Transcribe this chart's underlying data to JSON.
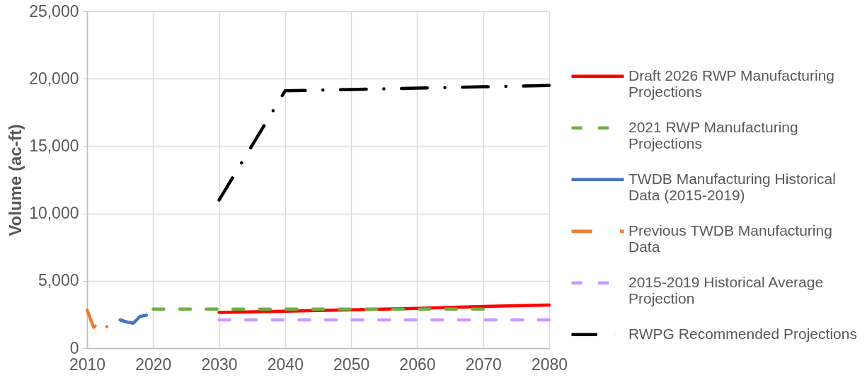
{
  "chart_data": {
    "type": "line",
    "ylabel": "Volume (ac-ft)",
    "xlim": [
      2010,
      2080
    ],
    "xticks": [
      2010,
      2020,
      2030,
      2040,
      2050,
      2060,
      2070,
      2080
    ],
    "ylim": [
      0,
      25000
    ],
    "yticks": [
      0,
      {
        "value": 5000,
        "label": "5,000"
      },
      {
        "value": 10000,
        "label": "10,000"
      },
      {
        "value": 15000,
        "label": "15,000"
      },
      {
        "value": 20000,
        "label": "20,000"
      },
      {
        "value": 25000,
        "label": "25,000"
      }
    ],
    "grid": true,
    "legend": "right",
    "series": [
      {
        "name": "Draft 2026 RWP Manufacturing Projections",
        "color": "#ff0000",
        "line_style": "solid",
        "x": [
          2030,
          2040,
          2050,
          2060,
          2070,
          2080
        ],
        "values": [
          2650,
          2750,
          2850,
          2950,
          3100,
          3200
        ]
      },
      {
        "name": "2021 RWP Manufacturing Projections",
        "color": "#70ad47",
        "line_style": "dashed",
        "x": [
          2020,
          2030,
          2040,
          2050,
          2060,
          2070
        ],
        "values": [
          2900,
          2900,
          2900,
          2900,
          2900,
          2900
        ]
      },
      {
        "name": "TWDB Manufacturing Historical Data (2015-2019)",
        "color": "#4472c4",
        "line_style": "solid",
        "x": [
          2015,
          2016,
          2017,
          2018,
          2019
        ],
        "values": [
          2100,
          1950,
          1850,
          2350,
          2450
        ]
      },
      {
        "name": "Previous TWDB Manufacturing Data",
        "color": "#ed7d31",
        "line_style": "dashdot",
        "x": [
          2010,
          2011,
          2012,
          2013
        ],
        "values": [
          2850,
          1550,
          1900,
          1600
        ]
      },
      {
        "name": "2015-2019 Historical Average Projection",
        "color": "#cc99ff",
        "line_style": "dashed",
        "x": [
          2030,
          2040,
          2050,
          2060,
          2070,
          2080
        ],
        "values": [
          2100,
          2100,
          2100,
          2100,
          2100,
          2100
        ]
      },
      {
        "name": "RWPG Recommended Projections",
        "color": "#000000",
        "line_style": "dashdot",
        "x": [
          2030,
          2040,
          2050,
          2060,
          2070,
          2080
        ],
        "values": [
          11000,
          19100,
          19200,
          19300,
          19400,
          19500
        ]
      }
    ]
  }
}
